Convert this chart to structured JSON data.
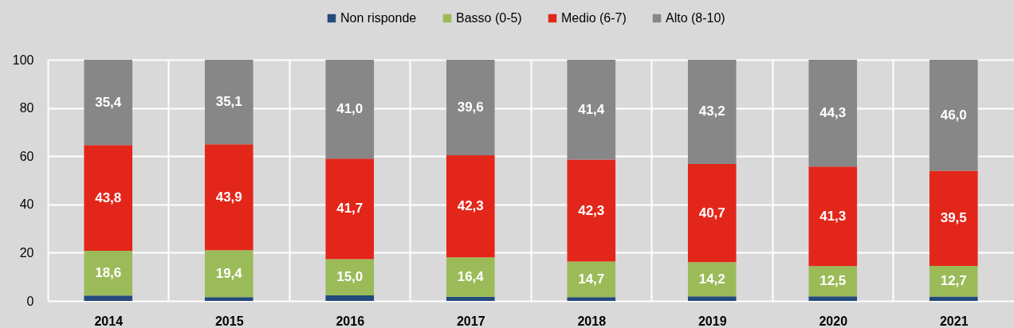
{
  "chart_data": {
    "type": "bar",
    "stacked": true,
    "categories": [
      "2014",
      "2015",
      "2016",
      "2017",
      "2018",
      "2019",
      "2020",
      "2021"
    ],
    "series": [
      {
        "name": "Non risponde",
        "color": "#244a7c",
        "values": [
          2.2,
          1.6,
          2.3,
          1.7,
          1.6,
          1.9,
          1.9,
          1.8
        ]
      },
      {
        "name": "Basso (0-5)",
        "color": "#9bbb59",
        "values": [
          18.6,
          19.4,
          15.0,
          16.4,
          14.7,
          14.2,
          12.5,
          12.7
        ],
        "value_labels": [
          "18,6",
          "19,4",
          "15,0",
          "16,4",
          "14,7",
          "14,2",
          "12,5",
          "12,7"
        ]
      },
      {
        "name": "Medio (6-7)",
        "color": "#e3261a",
        "values": [
          43.8,
          43.9,
          41.7,
          42.3,
          42.3,
          40.7,
          41.3,
          39.5
        ],
        "value_labels": [
          "43,8",
          "43,9",
          "41,7",
          "42,3",
          "42,3",
          "40,7",
          "41,3",
          "39,5"
        ]
      },
      {
        "name": "Alto (8-10)",
        "color": "#878787",
        "values": [
          35.4,
          35.1,
          41.0,
          39.6,
          41.4,
          43.2,
          44.3,
          46.0
        ],
        "value_labels": [
          "35,4",
          "35,1",
          "41,0",
          "39,6",
          "41,4",
          "43,2",
          "44,3",
          "46,0"
        ]
      }
    ],
    "ylim": [
      0,
      100
    ],
    "yticks": [
      0,
      20,
      40,
      60,
      80,
      100
    ],
    "grid": true,
    "legend": "top"
  }
}
